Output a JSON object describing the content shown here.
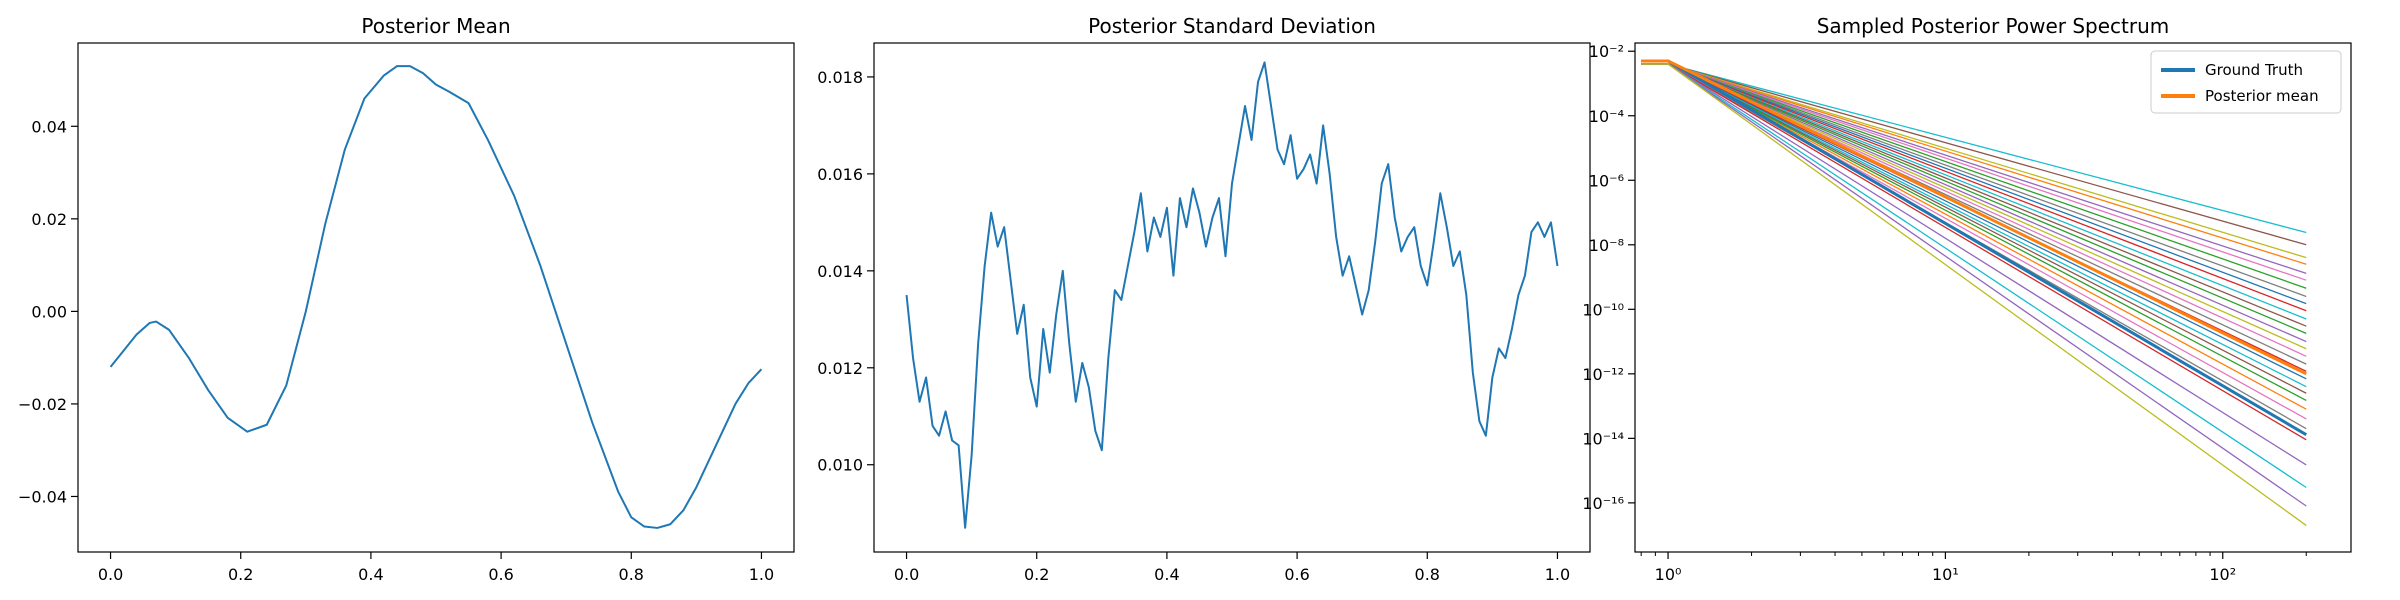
{
  "chart_data": [
    {
      "type": "line",
      "title": "Posterior Mean",
      "xlabel": "",
      "ylabel": "",
      "xlim": [
        -0.05,
        1.05
      ],
      "ylim": [
        -0.052,
        0.058
      ],
      "xticks": [
        0.0,
        0.2,
        0.4,
        0.6,
        0.8,
        1.0
      ],
      "xtick_labels": [
        "0.0",
        "0.2",
        "0.4",
        "0.6",
        "0.8",
        "1.0"
      ],
      "yticks": [
        -0.04,
        -0.02,
        0.0,
        0.02,
        0.04
      ],
      "ytick_labels": [
        "−0.04",
        "−0.02",
        "0.00",
        "0.02",
        "0.04"
      ],
      "grid": false,
      "series": [
        {
          "color": "#1f77b4",
          "x": [
            0.0,
            0.02,
            0.04,
            0.06,
            0.07,
            0.09,
            0.12,
            0.15,
            0.18,
            0.21,
            0.24,
            0.27,
            0.3,
            0.33,
            0.36,
            0.39,
            0.42,
            0.44,
            0.46,
            0.48,
            0.5,
            0.52,
            0.55,
            0.58,
            0.62,
            0.66,
            0.7,
            0.74,
            0.78,
            0.8,
            0.82,
            0.84,
            0.86,
            0.88,
            0.9,
            0.92,
            0.94,
            0.96,
            0.98,
            1.0
          ],
          "y": [
            -0.012,
            -0.0085,
            -0.005,
            -0.0025,
            -0.0022,
            -0.004,
            -0.01,
            -0.017,
            -0.023,
            -0.026,
            -0.0245,
            -0.016,
            0.0,
            0.019,
            0.035,
            0.046,
            0.051,
            0.053,
            0.053,
            0.0515,
            0.049,
            0.0475,
            0.045,
            0.037,
            0.025,
            0.01,
            -0.007,
            -0.024,
            -0.039,
            -0.0445,
            -0.0465,
            -0.0468,
            -0.046,
            -0.043,
            -0.038,
            -0.032,
            -0.026,
            -0.02,
            -0.0155,
            -0.0125
          ]
        }
      ]
    },
    {
      "type": "line",
      "title": "Posterior Standard Deviation",
      "xlabel": "",
      "ylabel": "",
      "xlim": [
        -0.05,
        1.05
      ],
      "ylim": [
        0.0082,
        0.0187
      ],
      "xticks": [
        0.0,
        0.2,
        0.4,
        0.6,
        0.8,
        1.0
      ],
      "xtick_labels": [
        "0.0",
        "0.2",
        "0.4",
        "0.6",
        "0.8",
        "1.0"
      ],
      "yticks": [
        0.01,
        0.012,
        0.014,
        0.016,
        0.018
      ],
      "ytick_labels": [
        "0.010",
        "0.012",
        "0.014",
        "0.016",
        "0.018"
      ],
      "grid": false,
      "series": [
        {
          "color": "#1f77b4",
          "x": [
            0.0,
            0.01,
            0.02,
            0.03,
            0.04,
            0.05,
            0.06,
            0.07,
            0.08,
            0.09,
            0.1,
            0.11,
            0.12,
            0.13,
            0.14,
            0.15,
            0.16,
            0.17,
            0.18,
            0.19,
            0.2,
            0.21,
            0.22,
            0.23,
            0.24,
            0.25,
            0.26,
            0.27,
            0.28,
            0.29,
            0.3,
            0.31,
            0.32,
            0.33,
            0.34,
            0.35,
            0.36,
            0.37,
            0.38,
            0.39,
            0.4,
            0.41,
            0.42,
            0.43,
            0.44,
            0.45,
            0.46,
            0.47,
            0.48,
            0.49,
            0.5,
            0.51,
            0.52,
            0.53,
            0.54,
            0.55,
            0.56,
            0.57,
            0.58,
            0.59,
            0.6,
            0.61,
            0.62,
            0.63,
            0.64,
            0.65,
            0.66,
            0.67,
            0.68,
            0.69,
            0.7,
            0.71,
            0.72,
            0.73,
            0.74,
            0.75,
            0.76,
            0.77,
            0.78,
            0.79,
            0.8,
            0.81,
            0.82,
            0.83,
            0.84,
            0.85,
            0.86,
            0.87,
            0.88,
            0.89,
            0.9,
            0.91,
            0.92,
            0.93,
            0.94,
            0.95,
            0.96,
            0.97,
            0.98,
            0.99,
            1.0
          ],
          "y": [
            0.0135,
            0.0122,
            0.0113,
            0.0118,
            0.0108,
            0.0106,
            0.0111,
            0.0105,
            0.0104,
            0.0087,
            0.0102,
            0.0125,
            0.0141,
            0.0152,
            0.0145,
            0.0149,
            0.0138,
            0.0127,
            0.0133,
            0.0118,
            0.0112,
            0.0128,
            0.0119,
            0.0131,
            0.014,
            0.0125,
            0.0113,
            0.0121,
            0.0116,
            0.0107,
            0.0103,
            0.0122,
            0.0136,
            0.0134,
            0.0141,
            0.0148,
            0.0156,
            0.0144,
            0.0151,
            0.0147,
            0.0153,
            0.0139,
            0.0155,
            0.0149,
            0.0157,
            0.0152,
            0.0145,
            0.0151,
            0.0155,
            0.0143,
            0.0158,
            0.0166,
            0.0174,
            0.0167,
            0.0179,
            0.0183,
            0.0174,
            0.0165,
            0.0162,
            0.0168,
            0.0159,
            0.0161,
            0.0164,
            0.0158,
            0.017,
            0.016,
            0.0147,
            0.0139,
            0.0143,
            0.0137,
            0.0131,
            0.0136,
            0.0146,
            0.0158,
            0.0162,
            0.0151,
            0.0144,
            0.0147,
            0.0149,
            0.0141,
            0.0137,
            0.0146,
            0.0156,
            0.0149,
            0.0141,
            0.0144,
            0.0135,
            0.0119,
            0.0109,
            0.0106,
            0.0118,
            0.0124,
            0.0122,
            0.0128,
            0.0135,
            0.0139,
            0.0148,
            0.015,
            0.0147,
            0.015,
            0.0141
          ]
        }
      ]
    },
    {
      "type": "line",
      "title": "Sampled Posterior Power Spectrum",
      "xlabel": "",
      "ylabel": "",
      "xscale": "log",
      "yscale": "log",
      "xlim": [
        0.76,
        290
      ],
      "ylim": [
        3e-18,
        0.018
      ],
      "xticks": [
        1,
        10,
        100
      ],
      "xtick_labels": [
        "10⁰",
        "10¹",
        "10²"
      ],
      "yticks": [
        1e-16,
        1e-14,
        1e-12,
        1e-10,
        1e-08,
        1e-06,
        0.0001,
        0.01
      ],
      "ytick_labels": [
        "10⁻¹⁶",
        "10⁻¹⁴",
        "10⁻¹²",
        "10⁻¹⁰",
        "10⁻⁸",
        "10⁻⁶",
        "10⁻⁴",
        "10⁻²"
      ],
      "grid": false,
      "legend": {
        "placement": "top-right",
        "entries": [
          "Ground Truth",
          "Posterior mean"
        ]
      },
      "sample_x": [
        0.8,
        1.0,
        200
      ],
      "samples": [
        {
          "color": "#17becf",
          "y": [
            0.004,
            0.004,
            2.4e-08
          ]
        },
        {
          "color": "#8c564b",
          "y": [
            0.004,
            0.004,
            1e-08
          ]
        },
        {
          "color": "#bcbd22",
          "y": [
            0.004,
            0.004,
            4e-09
          ]
        },
        {
          "color": "#ff7f0e",
          "y": [
            0.004,
            0.004,
            2.5e-09
          ]
        },
        {
          "color": "#9467bd",
          "y": [
            0.004,
            0.004,
            1.3e-09
          ]
        },
        {
          "color": "#e377c2",
          "y": [
            0.004,
            0.004,
            8e-10
          ]
        },
        {
          "color": "#2ca02c",
          "y": [
            0.004,
            0.004,
            4.5e-10
          ]
        },
        {
          "color": "#7f7f7f",
          "y": [
            0.004,
            0.004,
            2.5e-10
          ]
        },
        {
          "color": "#1f77b4",
          "y": [
            0.004,
            0.004,
            1.5e-10
          ]
        },
        {
          "color": "#d62728",
          "y": [
            0.004,
            0.004,
            9e-11
          ]
        },
        {
          "color": "#17becf",
          "y": [
            0.004,
            0.004,
            5e-11
          ]
        },
        {
          "color": "#8c564b",
          "y": [
            0.004,
            0.004,
            3e-11
          ]
        },
        {
          "color": "#2ca02c",
          "y": [
            0.004,
            0.004,
            1.8e-11
          ]
        },
        {
          "color": "#9467bd",
          "y": [
            0.004,
            0.004,
            1e-11
          ]
        },
        {
          "color": "#bcbd22",
          "y": [
            0.004,
            0.004,
            6e-12
          ]
        },
        {
          "color": "#e377c2",
          "y": [
            0.004,
            0.004,
            3.5e-12
          ]
        },
        {
          "color": "#7f7f7f",
          "y": [
            0.004,
            0.004,
            2e-12
          ]
        },
        {
          "color": "#d62728",
          "y": [
            0.004,
            0.004,
            1.2e-12
          ]
        },
        {
          "color": "#1f77b4",
          "y": [
            0.004,
            0.004,
            7e-13
          ]
        },
        {
          "color": "#17becf",
          "y": [
            0.004,
            0.004,
            4e-13
          ]
        },
        {
          "color": "#8c564b",
          "y": [
            0.004,
            0.004,
            2.5e-13
          ]
        },
        {
          "color": "#2ca02c",
          "y": [
            0.004,
            0.004,
            1.5e-13
          ]
        },
        {
          "color": "#ff7f0e",
          "y": [
            0.004,
            0.004,
            8e-14
          ]
        },
        {
          "color": "#e377c2",
          "y": [
            0.004,
            0.004,
            4e-14
          ]
        },
        {
          "color": "#7f7f7f",
          "y": [
            0.004,
            0.004,
            2e-14
          ]
        },
        {
          "color": "#d62728",
          "y": [
            0.004,
            0.004,
            9e-15
          ]
        },
        {
          "color": "#9467bd",
          "y": [
            0.004,
            0.004,
            1.5e-15
          ]
        },
        {
          "color": "#17becf",
          "y": [
            0.004,
            0.004,
            3e-16
          ]
        },
        {
          "color": "#9467bd",
          "y": [
            0.004,
            0.004,
            8e-17
          ]
        },
        {
          "color": "#bcbd22",
          "y": [
            0.004,
            0.004,
            2e-17
          ]
        }
      ],
      "series": [
        {
          "name": "Ground Truth",
          "color": "#1f77b4",
          "x": [
            0.8,
            1.0,
            200
          ],
          "y": [
            0.005,
            0.005,
            1.3e-14
          ]
        },
        {
          "name": "Posterior mean",
          "color": "#ff7f0e",
          "x": [
            0.8,
            1.0,
            200
          ],
          "y": [
            0.005,
            0.005,
            1e-12
          ]
        }
      ]
    }
  ]
}
